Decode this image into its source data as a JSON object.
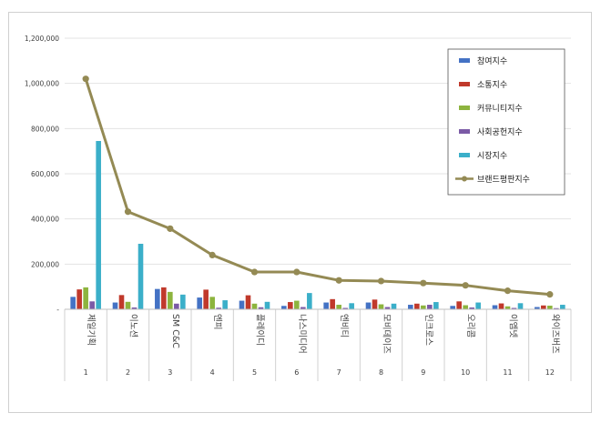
{
  "chart_data": {
    "type": "bar",
    "title": "",
    "xlabel": "",
    "ylabel": "",
    "ylim": [
      0,
      1200000
    ],
    "yticks": [
      0,
      200000,
      400000,
      600000,
      800000,
      1000000,
      1200000
    ],
    "ytick_labels": [
      "-",
      "200,000",
      "400,000",
      "600,000",
      "800,000",
      "1,000,000",
      "1,200,000"
    ],
    "grid": true,
    "legend_position": "top-right",
    "categories": [
      "제일기획",
      "이노션",
      "SM C&C",
      "엔피",
      "플레이디",
      "나스미디어",
      "엔비티",
      "모비데이즈",
      "인크로스",
      "오리콤",
      "이엠넷",
      "와이즈버즈"
    ],
    "ranks": [
      "1",
      "2",
      "3",
      "4",
      "5",
      "6",
      "7",
      "8",
      "9",
      "10",
      "11",
      "12"
    ],
    "series": [
      {
        "name": "참여지수",
        "kind": "bar",
        "color": "#4472C4",
        "values": [
          55000,
          30000,
          90000,
          52000,
          38000,
          15000,
          30000,
          30000,
          20000,
          15000,
          18000,
          10000
        ]
      },
      {
        "name": "소통지수",
        "kind": "bar",
        "color": "#C0392B",
        "values": [
          88000,
          63000,
          97000,
          87000,
          62000,
          32000,
          45000,
          43000,
          25000,
          35000,
          26000,
          17000
        ]
      },
      {
        "name": "커뮤니티지수",
        "kind": "bar",
        "color": "#8DB43E",
        "values": [
          97000,
          33000,
          77000,
          55000,
          25000,
          38000,
          20000,
          22000,
          17000,
          18000,
          13000,
          16000
        ]
      },
      {
        "name": "사회공헌지수",
        "kind": "bar",
        "color": "#7B5AA6",
        "values": [
          35000,
          8000,
          25000,
          7000,
          9000,
          10000,
          6000,
          10000,
          20000,
          8000,
          6000,
          5000
        ]
      },
      {
        "name": "시장지수",
        "kind": "bar",
        "color": "#3BAFC9",
        "values": [
          745000,
          290000,
          65000,
          40000,
          33000,
          72000,
          27000,
          25000,
          32000,
          30000,
          27000,
          20000
        ]
      },
      {
        "name": "브랜드평판지수",
        "kind": "line",
        "color": "#948A54",
        "values": [
          1020000,
          432000,
          357000,
          240000,
          165000,
          165000,
          128000,
          125000,
          116000,
          106000,
          82000,
          66000
        ]
      }
    ]
  }
}
